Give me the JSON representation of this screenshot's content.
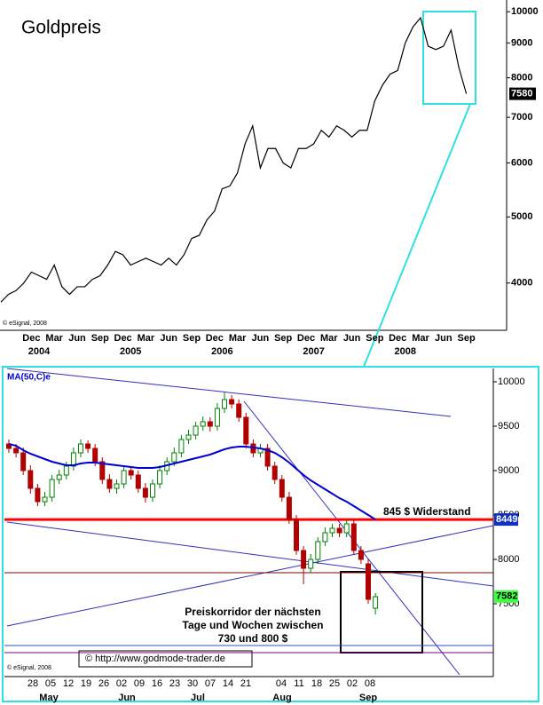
{
  "chart_data": [
    {
      "type": "line",
      "title": "Goldpreis",
      "credit": "© eSignal, 2008",
      "log_scale": true,
      "categories": [
        null,
        null,
        null,
        null,
        "Dec",
        null,
        null,
        "Mar",
        null,
        null,
        "Jun",
        null,
        null,
        "Sep",
        null,
        null,
        "Dec",
        null,
        null,
        "Mar",
        null,
        null,
        "Jun",
        null,
        null,
        "Sep",
        null,
        null,
        "Dec",
        null,
        null,
        "Mar",
        null,
        null,
        "Jun",
        null,
        null,
        "Sep",
        null,
        null,
        "Dec",
        null,
        null,
        "Mar",
        null,
        null,
        "Jun",
        null,
        null,
        "Sep",
        null,
        null,
        "Dec",
        null,
        null,
        "Mar",
        null,
        null,
        "Jun",
        null,
        null,
        "Sep"
      ],
      "year_labels": [
        "2004",
        "2005",
        "2006",
        "2007",
        "2008"
      ],
      "series": [
        {
          "color": "#000000",
          "values": [
            3750,
            3850,
            3900,
            4000,
            4150,
            4100,
            4050,
            4250,
            3950,
            3850,
            3950,
            3950,
            4050,
            4100,
            4250,
            4450,
            4400,
            4250,
            4300,
            4350,
            4300,
            4250,
            4350,
            4250,
            4400,
            4650,
            4700,
            4950,
            5100,
            5500,
            5550,
            5800,
            6400,
            6800,
            5900,
            6300,
            6300,
            6000,
            5900,
            6300,
            6300,
            6400,
            6700,
            6550,
            6800,
            6700,
            6550,
            6700,
            6700,
            7400,
            7800,
            8100,
            8200,
            9000,
            9500,
            9800,
            8900,
            8800,
            8900,
            9400,
            8300,
            7580
          ]
        }
      ],
      "ylim": [
        3430,
        10250
      ],
      "yticks": [
        4000,
        5000,
        6000,
        7000,
        8000,
        9000,
        10000
      ]
    },
    {
      "type": "candlestick",
      "credit": "© eSignal, 2008",
      "up_color": "#008000",
      "down_color": "#b00000",
      "x_labels": [
        "28",
        "05",
        "12",
        "19",
        "26",
        "02",
        "09",
        "16",
        "23",
        "30",
        "07",
        "14",
        "21",
        null,
        "04",
        "11",
        "18",
        "25",
        "02",
        "08"
      ],
      "month_labels": [
        "May",
        "Jun",
        "Jul",
        "Aug",
        "Sep"
      ],
      "open": [
        9300,
        9250,
        9200,
        9000,
        8800,
        8650,
        8700,
        8900,
        8950,
        9050,
        9200,
        9300,
        9250,
        9100,
        8900,
        8800,
        8850,
        9000,
        8950,
        8800,
        8700,
        8850,
        9000,
        9100,
        9200,
        9350,
        9400,
        9500,
        9550,
        9500,
        9700,
        9800,
        9750,
        9600,
        9300,
        9200,
        9250,
        9050,
        8900,
        8700,
        8450,
        8100,
        7900,
        8000,
        8200,
        8300,
        8350,
        8300,
        8400,
        8100,
        7950,
        7450
      ],
      "high": [
        9350,
        9300,
        9260,
        9060,
        8850,
        8760,
        8950,
        9010,
        9100,
        9260,
        9350,
        9340,
        9300,
        9150,
        8960,
        8900,
        9060,
        9050,
        9000,
        8860,
        8900,
        9060,
        9150,
        9260,
        9400,
        9460,
        9550,
        9610,
        9600,
        9760,
        9880,
        9850,
        9800,
        9650,
        9350,
        9300,
        9300,
        9100,
        8950,
        8760,
        8500,
        8150,
        8060,
        8250,
        8360,
        8400,
        8400,
        8460,
        8450,
        8150,
        8000,
        7620
      ],
      "low": [
        9200,
        9150,
        8950,
        8740,
        8600,
        8600,
        8650,
        8850,
        8900,
        9000,
        9150,
        9200,
        9050,
        8850,
        8750,
        8740,
        8800,
        8900,
        8750,
        8640,
        8650,
        8800,
        8950,
        9050,
        9150,
        9300,
        9350,
        9450,
        9440,
        9450,
        9650,
        9700,
        9550,
        9250,
        9150,
        9150,
        9000,
        8850,
        8650,
        8400,
        8050,
        7720,
        7850,
        7950,
        8150,
        8250,
        8250,
        8250,
        8050,
        7950,
        7500,
        7380
      ],
      "close": [
        9250,
        9200,
        9000,
        8800,
        8650,
        8700,
        8900,
        8950,
        9050,
        9200,
        9300,
        9250,
        9100,
        8900,
        8800,
        8850,
        9000,
        8950,
        8800,
        8700,
        8850,
        9000,
        9100,
        9200,
        9350,
        9400,
        9500,
        9550,
        9500,
        9700,
        9800,
        9750,
        9600,
        9300,
        9200,
        9250,
        9050,
        8900,
        8700,
        8450,
        8100,
        7900,
        8000,
        8200,
        8300,
        8350,
        8300,
        8400,
        8100,
        8000,
        7550,
        7580
      ],
      "series": [
        {
          "name": "MA(50,C)e",
          "color": "#0000d0",
          "values": [
            9300,
            9280,
            9230,
            9190,
            9160,
            9130,
            9100,
            9080,
            9060,
            9060,
            9080,
            9090,
            9090,
            9080,
            9070,
            9060,
            9050,
            9040,
            9030,
            9030,
            9030,
            9040,
            9060,
            9080,
            9100,
            9120,
            9140,
            9160,
            9180,
            9210,
            9240,
            9260,
            9270,
            9270,
            9260,
            9250,
            9230,
            9200,
            9150,
            9090,
            9020,
            8950,
            8890,
            8840,
            8790,
            8740,
            8690,
            8650,
            8600,
            8550,
            8500,
            8450
          ]
        }
      ],
      "levels": [
        {
          "value": 8449,
          "color": "#ff0000"
        },
        {
          "value": 7850,
          "color": "#800000"
        },
        {
          "value": 7030,
          "color": "#3050c0"
        },
        {
          "value": 6950,
          "color": "#800080"
        }
      ],
      "last_price": 7582,
      "ylim": [
        6700,
        10150
      ],
      "yticks": [
        7500,
        8000,
        8500,
        9000,
        9500,
        10000
      ],
      "annotations": {
        "resistance": "845 $ Widerstand",
        "corridor": [
          "Preiskorridor der nächsten",
          "Tage und Wochen zwischen",
          "730 und 800 $"
        ],
        "source": "© http://www.godmode-trader.de"
      }
    }
  ]
}
